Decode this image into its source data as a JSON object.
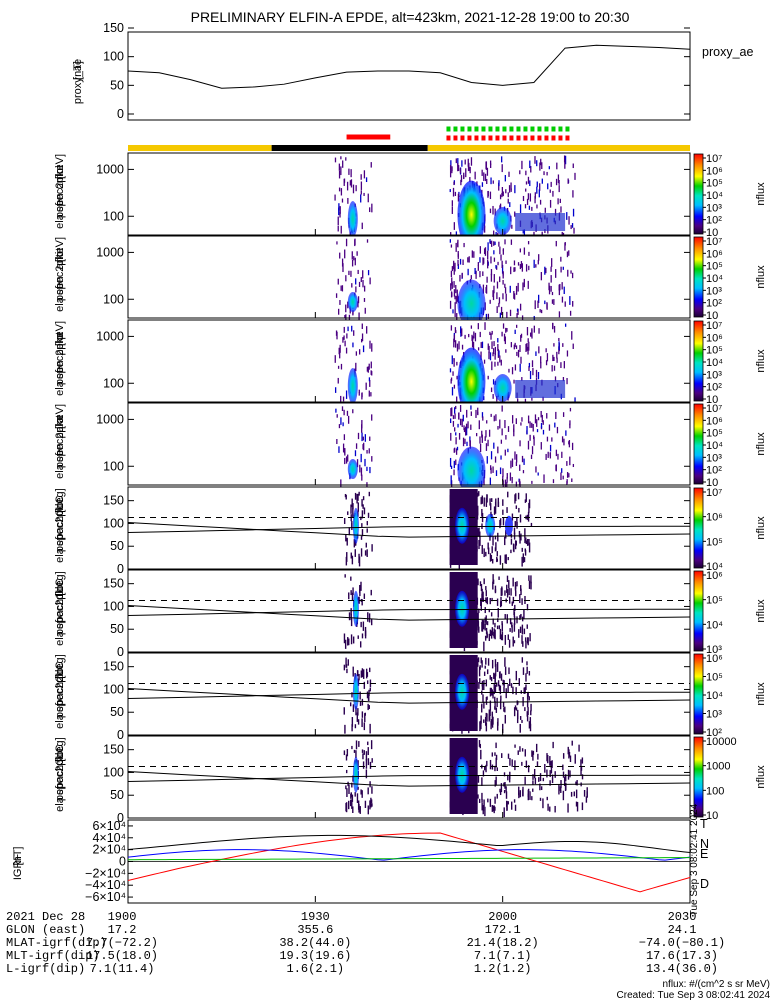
{
  "title": "PRELIMINARY ELFIN-A EPDE, alt=423km, 2021-12-28 19:00 to 20:30",
  "chart_data": [
    {
      "type": "line",
      "name": "proxy_ae",
      "legend": "proxy_ae",
      "ylabel": [
        "proxy_ae",
        "[nT]"
      ],
      "ylim": [
        0,
        150
      ],
      "yticks": [
        0,
        50,
        100,
        150
      ],
      "x_minutes": [
        0,
        5,
        10,
        15,
        20,
        25,
        30,
        35,
        40,
        45,
        50,
        55,
        60,
        65,
        70,
        75,
        80,
        85,
        90
      ],
      "values": [
        75,
        72,
        60,
        45,
        47,
        52,
        63,
        73,
        75,
        75,
        72,
        55,
        50,
        55,
        115,
        120,
        118,
        116,
        113
      ]
    },
    {
      "type": "bar",
      "name": "region bar",
      "segments": [
        {
          "x0": 0,
          "x1": 23,
          "color": "#f5c800"
        },
        {
          "x0": 23,
          "x1": 48,
          "color": "#000000"
        },
        {
          "x0": 48,
          "x1": 90,
          "color": "#f5c800"
        }
      ],
      "markers": [
        {
          "x0": 35,
          "x1": 42,
          "color": "#ff0000",
          "style": "solid"
        },
        {
          "x0": 51,
          "x1": 71,
          "color": "#00cc00",
          "style": "dashed"
        },
        {
          "x0": 51,
          "x1": 71,
          "color": "#ff0000",
          "style": "dashed"
        }
      ]
    },
    {
      "type": "heatmap",
      "name": "spec_omni",
      "ylabel": [
        "ela",
        "pef",
        "en",
        "spec2plot",
        "omni",
        "[keV]"
      ],
      "yscale": "log",
      "yticks": [
        100,
        1000
      ],
      "colorbar": {
        "label": "nflux",
        "scale": "log",
        "ticks": [
          "10",
          "10²",
          "10³",
          "10⁴",
          "10⁵",
          "10⁶",
          "10⁷"
        ]
      }
    },
    {
      "type": "heatmap",
      "name": "spec_anti",
      "ylabel": [
        "ela",
        "pef",
        "en",
        "spec2plot",
        "anti",
        "[keV]"
      ],
      "yscale": "log",
      "yticks": [
        100,
        1000
      ],
      "colorbar": {
        "label": "nflux",
        "scale": "log",
        "ticks": [
          "10",
          "10²",
          "10³",
          "10⁴",
          "10⁵",
          "10⁶",
          "10⁷"
        ]
      }
    },
    {
      "type": "heatmap",
      "name": "spec_perp",
      "ylabel": [
        "ela",
        "pef",
        "en",
        "spec2plot",
        "perp",
        "[keV]"
      ],
      "yscale": "log",
      "yticks": [
        100,
        1000
      ],
      "colorbar": {
        "label": "nflux",
        "scale": "log",
        "ticks": [
          "10",
          "10²",
          "10³",
          "10⁴",
          "10⁵",
          "10⁶",
          "10⁷"
        ]
      }
    },
    {
      "type": "heatmap",
      "name": "spec_para",
      "ylabel": [
        "ela",
        "pef",
        "en",
        "spec2plot",
        "para",
        "[keV]"
      ],
      "yscale": "log",
      "yticks": [
        100,
        1000
      ],
      "colorbar": {
        "label": "nflux",
        "scale": "log",
        "ticks": [
          "10",
          "10²",
          "10³",
          "10⁴",
          "10⁵",
          "10⁶",
          "10⁷"
        ]
      }
    },
    {
      "type": "heatmap",
      "name": "pa_ch0LC",
      "ylabel": [
        "ela",
        "pef",
        "pa",
        "spec2plot",
        "ch0LC",
        "[deg]"
      ],
      "ylim": [
        0,
        180
      ],
      "yticks": [
        0,
        50,
        100,
        150
      ],
      "colorbar": {
        "label": "nflux",
        "scale": "log",
        "ticks": [
          "10⁴",
          "10⁵",
          "10⁶",
          "10⁷"
        ]
      }
    },
    {
      "type": "heatmap",
      "name": "pa_ch1LC",
      "ylabel": [
        "ela",
        "pef",
        "pa",
        "spec2plot",
        "ch1LC",
        "[deg]"
      ],
      "ylim": [
        0,
        180
      ],
      "yticks": [
        0,
        50,
        100,
        150
      ],
      "colorbar": {
        "label": "nflux",
        "scale": "log",
        "ticks": [
          "10³",
          "10⁴",
          "10⁵",
          "10⁶"
        ]
      }
    },
    {
      "type": "heatmap",
      "name": "pa_ch2LC",
      "ylabel": [
        "ela",
        "pef",
        "pa",
        "spec2plot",
        "ch2LC",
        "[deg]"
      ],
      "ylim": [
        0,
        180
      ],
      "yticks": [
        0,
        50,
        100,
        150
      ],
      "colorbar": {
        "label": "nflux",
        "scale": "log",
        "ticks": [
          "10²",
          "10³",
          "10⁴",
          "10⁵",
          "10⁶"
        ]
      }
    },
    {
      "type": "heatmap",
      "name": "pa_ch3LC",
      "ylabel": [
        "ela",
        "pef",
        "pa",
        "spec2plot",
        "ch3LC",
        "[deg]"
      ],
      "ylim": [
        0,
        180
      ],
      "yticks": [
        0,
        50,
        100,
        150
      ],
      "colorbar": {
        "label": "nflux",
        "scale": "log",
        "ticks": [
          "10",
          "100",
          "1000",
          "10000"
        ]
      }
    },
    {
      "type": "line",
      "name": "IGRF",
      "ylabel": [
        "IGRF",
        "[nT]"
      ],
      "yticks": [
        "−6×10⁴",
        "−4×10⁴",
        "−2×10⁴",
        "0",
        "2×10⁴",
        "4×10⁴",
        "6×10⁴"
      ],
      "yvalues": [
        -60000,
        -40000,
        -20000,
        0,
        20000,
        40000,
        60000
      ],
      "legend": [
        {
          "label": "T",
          "color": "#000000"
        },
        {
          "label": "N",
          "color": "#0000ff"
        },
        {
          "label": "E",
          "color": "#00bb00"
        },
        {
          "label": "D",
          "color": "#ff0000"
        }
      ]
    }
  ],
  "x_axis": {
    "tick_labels": [
      "1900",
      "1930",
      "2000",
      "2030"
    ],
    "tick_minutes": [
      0,
      30,
      60,
      90
    ],
    "rows": [
      {
        "label": "2021 Dec 28",
        "values": [
          "1900",
          "1930",
          "2000",
          "2030"
        ]
      },
      {
        "label": "GLON (east)",
        "values": [
          "17.2",
          "355.6",
          "172.1",
          "24.1"
        ]
      },
      {
        "label": "MLAT-igrf(dip)",
        "values": [
          "7.7(−72.2)",
          "38.2(44.0)",
          "21.4(18.2)",
          "−74.0(−80.1)"
        ]
      },
      {
        "label": "MLT-igrf(dip)",
        "values": [
          "17.5(18.0)",
          "19.3(19.6)",
          "7.1(7.1)",
          "17.6(17.3)"
        ]
      },
      {
        "label": "L-igrf(dip)",
        "values": [
          "7.1(11.4)",
          "1.6(2.1)",
          "1.2(1.2)",
          "13.4(36.0)"
        ]
      }
    ]
  },
  "footer": {
    "units": "nflux: #/(cm^2 s sr MeV)",
    "created": "Created: Tue Sep  3 08:02:41 2024",
    "side_stamp": "Tue Sep  3 08:02:41 2024"
  }
}
